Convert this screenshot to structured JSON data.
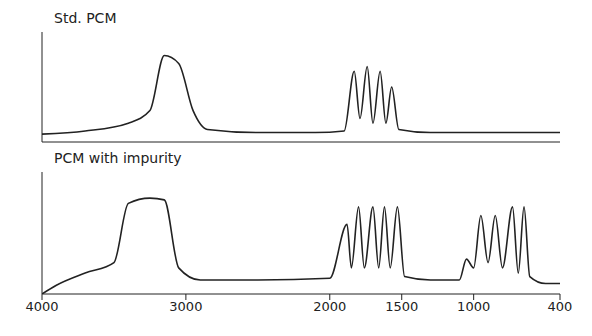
{
  "chart_data": [
    {
      "type": "line",
      "title": "Std. PCM",
      "color": "#222222",
      "grid": false,
      "tick_labels": false,
      "x": [
        4000,
        3700,
        3400,
        3250,
        3150,
        3050,
        2950,
        2850,
        2500,
        2100,
        1900,
        1830,
        1790,
        1740,
        1700,
        1650,
        1610,
        1570,
        1520,
        1300,
        900,
        400
      ],
      "values": [
        0.5,
        0.7,
        1.2,
        2,
        5.5,
        5,
        2,
        0.8,
        0.6,
        0.6,
        0.7,
        4.5,
        1.5,
        4.8,
        1.2,
        4.5,
        1.2,
        3.5,
        0.8,
        0.6,
        0.6,
        0.6
      ],
      "xlim": [
        4000,
        400
      ],
      "xticks": [
        4000,
        3000,
        2000,
        1500,
        1000,
        400
      ],
      "ylim": [
        0,
        7
      ]
    },
    {
      "type": "line",
      "title": "PCM with impurity",
      "color": "#222222",
      "grid": false,
      "tick_labels": "x",
      "x": [
        4000,
        3900,
        3700,
        3500,
        3400,
        3250,
        3150,
        3050,
        2900,
        2500,
        2000,
        1880,
        1850,
        1800,
        1760,
        1700,
        1660,
        1620,
        1580,
        1530,
        1480,
        1300,
        1100,
        1050,
        1000,
        950,
        900,
        850,
        800,
        730,
        690,
        650,
        610,
        500,
        400
      ],
      "values": [
        0,
        0.5,
        1.2,
        1.8,
        5.2,
        5.5,
        5.4,
        1.5,
        0.8,
        0.8,
        0.9,
        4,
        1.5,
        5,
        1.5,
        5,
        1.5,
        5,
        1.5,
        5,
        1,
        0.8,
        0.8,
        2,
        1.5,
        4.5,
        1.8,
        4.5,
        1.5,
        5,
        1.2,
        5,
        1,
        0.6,
        0.6
      ],
      "xlim": [
        4000,
        400
      ],
      "xticks": [
        4000,
        3000,
        2000,
        1500,
        1000,
        400
      ],
      "ylim": [
        0,
        7
      ]
    }
  ]
}
